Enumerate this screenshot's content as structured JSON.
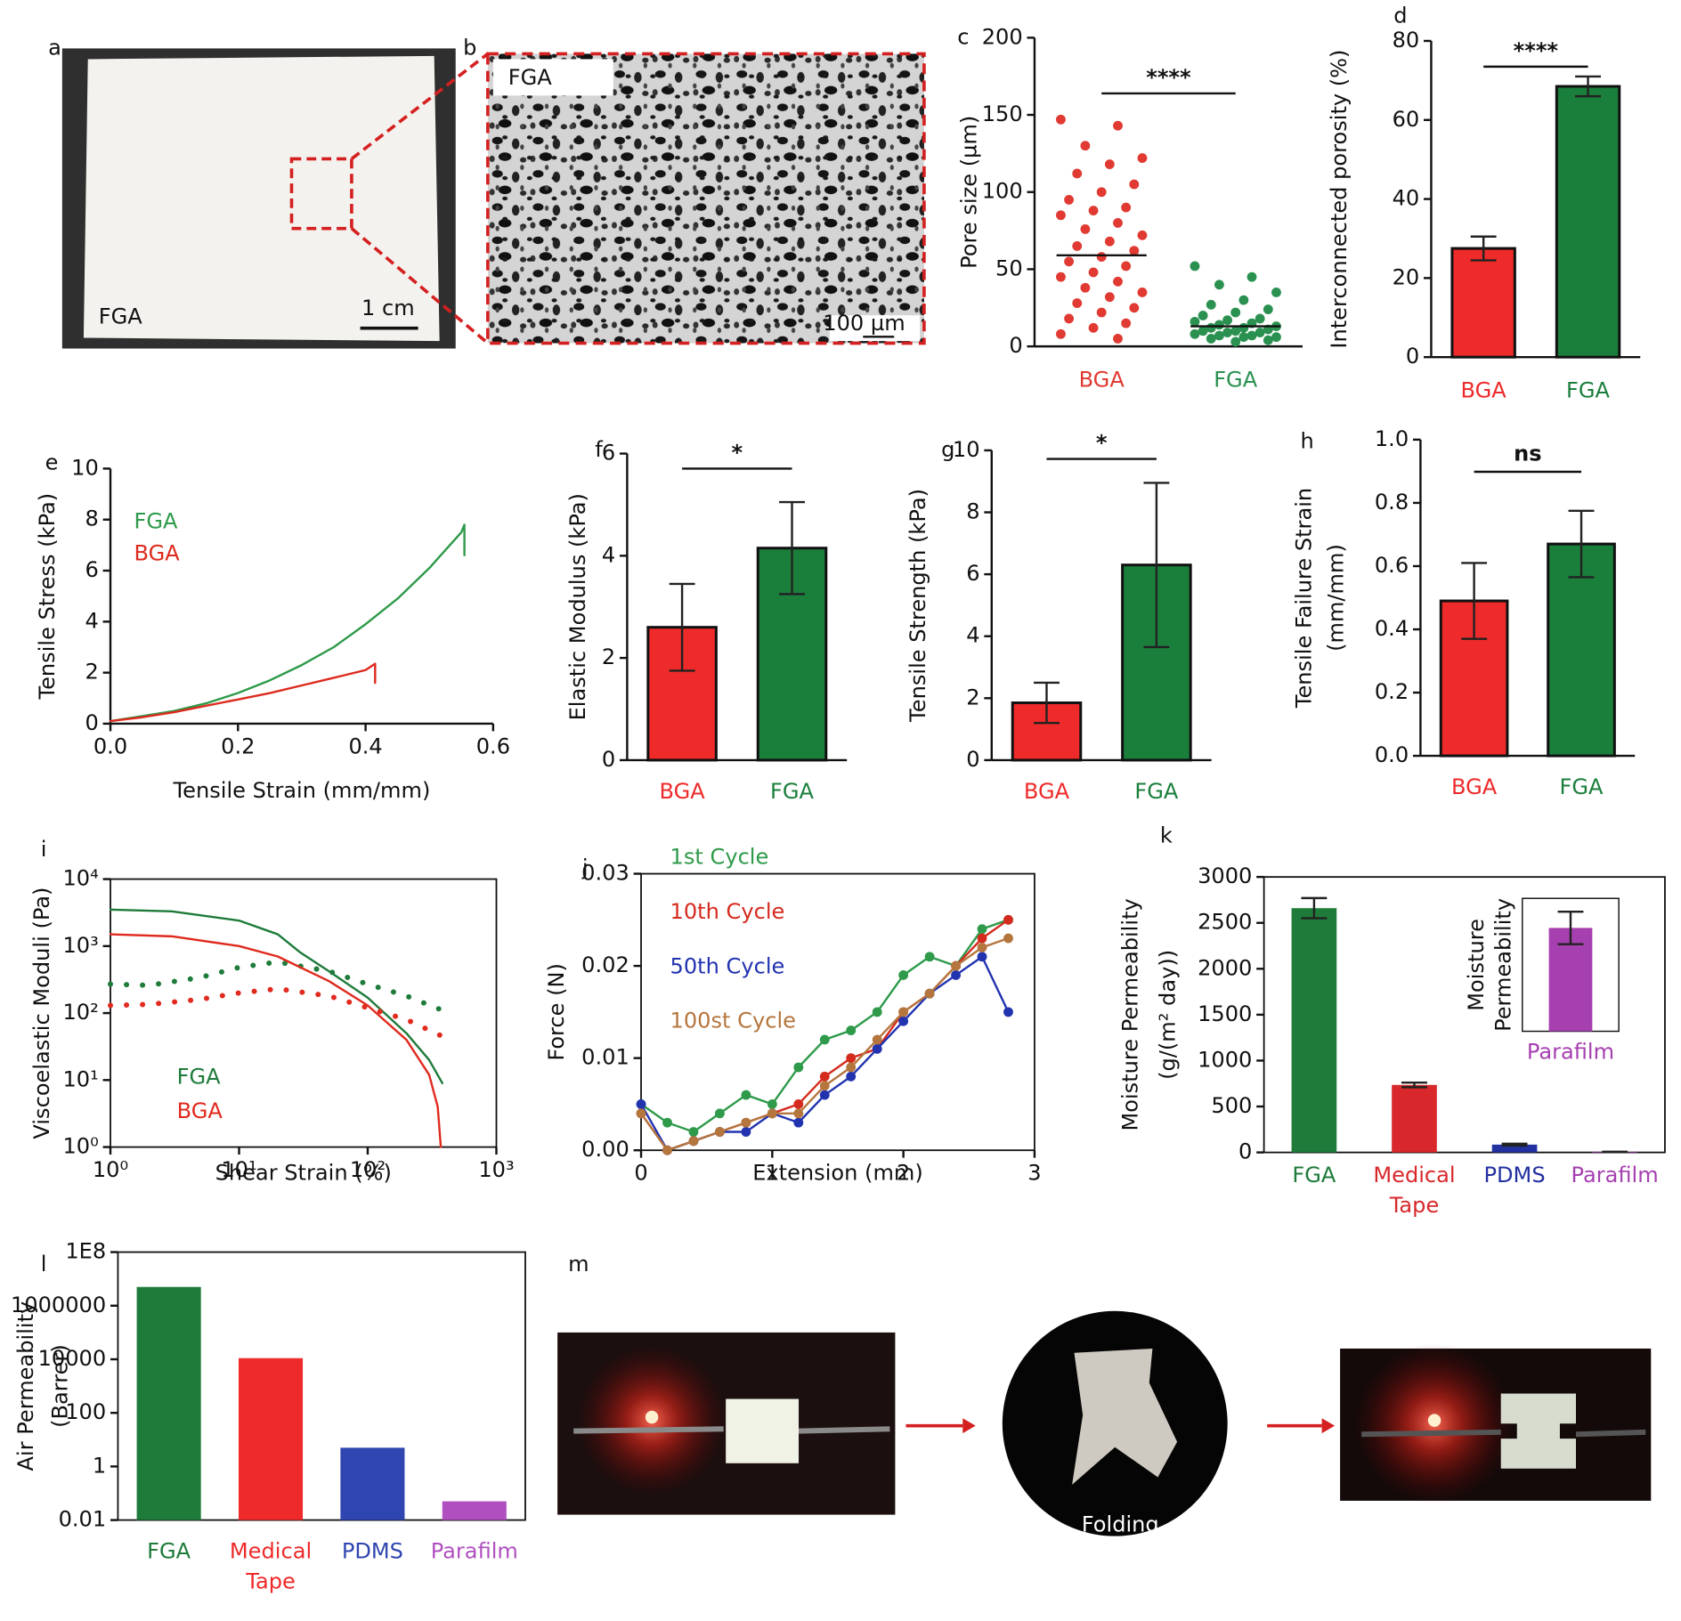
{
  "photos": {
    "a": {
      "label": "a",
      "sample": "FGA",
      "scale": "1 cm"
    },
    "b": {
      "label": "b",
      "sample": "FGA",
      "scale": "100 µm"
    },
    "m": {
      "label": "m",
      "caption": "Folding"
    }
  },
  "chart_data": [
    {
      "type": "strip",
      "label": "c",
      "ylabel": "Pore size (µm)",
      "ylim": [
        0,
        200
      ],
      "yticks": [
        0,
        50,
        100,
        150,
        200
      ],
      "series": [
        {
          "name": "BGA",
          "color": "#e03a32",
          "mean": 59,
          "values": [
            147,
            143,
            130,
            122,
            118,
            112,
            105,
            100,
            95,
            90,
            88,
            85,
            80,
            76,
            72,
            68,
            65,
            62,
            58,
            55,
            52,
            48,
            45,
            42,
            38,
            35,
            32,
            28,
            25,
            22,
            18,
            15,
            12,
            8,
            5
          ]
        },
        {
          "name": "FGA",
          "color": "#2a9150",
          "mean": 13,
          "values": [
            52,
            45,
            40,
            35,
            30,
            27,
            24,
            22,
            20,
            18,
            17,
            16,
            15,
            14,
            13,
            12,
            12,
            11,
            10,
            10,
            9,
            9,
            8,
            7,
            7,
            6,
            6,
            5,
            4,
            3
          ]
        }
      ],
      "significance": "****"
    },
    {
      "type": "bar",
      "label": "d",
      "ylabel": "Interconnected porosity (%)",
      "categories": [
        "BGA",
        "FGA"
      ],
      "values": [
        27.5,
        68.5
      ],
      "errors": [
        3,
        2.5
      ],
      "colors": [
        "#ee2a2a",
        "#1b7f3c"
      ],
      "bar_edge": "#111",
      "ylim": [
        0,
        80
      ],
      "yticks": [
        0,
        20,
        40,
        60,
        80
      ],
      "significance": "****"
    },
    {
      "type": "line",
      "label": "e",
      "xlabel": "Tensile Strain (mm/mm)",
      "ylabel": "Tensile Stress (kPa)",
      "xlim": [
        0,
        0.6
      ],
      "xticks": [
        {
          "value": 0,
          "label": "0.0"
        },
        0.2,
        0.4,
        0.6
      ],
      "ylim": [
        0,
        10
      ],
      "yticks": [
        0,
        2,
        4,
        6,
        8,
        10
      ],
      "legend": "upper left",
      "series": [
        {
          "name": "FGA",
          "color": "#2e9a4a",
          "x": [
            0,
            0.05,
            0.1,
            0.15,
            0.2,
            0.25,
            0.3,
            0.35,
            0.4,
            0.45,
            0.5,
            0.55,
            0.555,
            0.555
          ],
          "values": [
            0.1,
            0.3,
            0.5,
            0.8,
            1.2,
            1.7,
            2.3,
            3.0,
            3.9,
            4.9,
            6.1,
            7.5,
            7.8,
            6.6
          ]
        },
        {
          "name": "BGA",
          "color": "#dd2a1e",
          "x": [
            0,
            0.05,
            0.1,
            0.15,
            0.2,
            0.25,
            0.3,
            0.35,
            0.4,
            0.415,
            0.415
          ],
          "values": [
            0.1,
            0.25,
            0.45,
            0.7,
            0.95,
            1.2,
            1.5,
            1.8,
            2.1,
            2.35,
            1.6
          ]
        }
      ]
    },
    {
      "type": "bar",
      "label": "f",
      "ylabel": "Elastic Modulus (kPa)",
      "categories": [
        "BGA",
        "FGA"
      ],
      "values": [
        2.6,
        4.15
      ],
      "errors": [
        0.85,
        0.9
      ],
      "colors": [
        "#ee2a2a",
        "#1b7f3c"
      ],
      "bar_edge": "#111",
      "ylim": [
        0,
        6
      ],
      "yticks": [
        0,
        2,
        4,
        6
      ],
      "significance": "*"
    },
    {
      "type": "bar",
      "label": "g",
      "ylabel": "Tensile Strength (kPa)",
      "categories": [
        "BGA",
        "FGA"
      ],
      "values": [
        1.85,
        6.3
      ],
      "errors": [
        0.65,
        2.65
      ],
      "colors": [
        "#ee2a2a",
        "#1b7f3c"
      ],
      "bar_edge": "#111",
      "ylim": [
        0,
        10
      ],
      "yticks": [
        0,
        2,
        4,
        6,
        8,
        10
      ],
      "significance": "*"
    },
    {
      "type": "bar",
      "label": "h",
      "ylabel": [
        "Tensile Failure Strain",
        "(mm/mm)"
      ],
      "categories": [
        "BGA",
        "FGA"
      ],
      "values": [
        0.49,
        0.67
      ],
      "errors": [
        0.12,
        0.105
      ],
      "colors": [
        "#ee2a2a",
        "#1b7f3c"
      ],
      "bar_edge": "#111",
      "ylim": [
        0,
        1
      ],
      "yticks": [
        {
          "value": 0,
          "label": "0.0"
        },
        0.2,
        0.4,
        0.6,
        0.8,
        {
          "value": 1,
          "label": "1.0"
        }
      ],
      "significance": "ns"
    },
    {
      "type": "line",
      "label": "i",
      "xlabel": "Shear Strain (%)",
      "ylabel": "Viscoelastic  Moduli (Pa)",
      "box": true,
      "log_x": true,
      "log_y": true,
      "xlim": [
        1,
        1000
      ],
      "xticks": [
        {
          "value": 1,
          "label": "10⁰"
        },
        {
          "value": 10,
          "label": "10¹"
        },
        {
          "value": 100,
          "label": "10²"
        },
        {
          "value": 1000,
          "label": "10³"
        }
      ],
      "ylim": [
        1,
        10000
      ],
      "yticks": [
        {
          "value": 1,
          "label": "10⁰"
        },
        {
          "value": 10,
          "label": "10¹"
        },
        {
          "value": 100,
          "label": "10²"
        },
        {
          "value": 1000,
          "label": "10³"
        },
        {
          "value": 10000,
          "label": "10⁴"
        }
      ],
      "legend": "lower left",
      "series": [
        {
          "name": "FGA",
          "color": "#1e7b3a",
          "curves": [
            {
              "style": "solid",
              "x": [
                1,
                3,
                10,
                20,
                30,
                50,
                100,
                200,
                300,
                380
              ],
              "values": [
                3500,
                3300,
                2400,
                1500,
                800,
                420,
                170,
                50,
                20,
                9
              ]
            },
            {
              "style": "dotted",
              "x": [
                1,
                2,
                5,
                10,
                20,
                50,
                100,
                200,
                380
              ],
              "values": [
                270,
                260,
                340,
                480,
                580,
                420,
                270,
                180,
                110
              ]
            }
          ]
        },
        {
          "name": "BGA",
          "color": "#e02a1e",
          "curves": [
            {
              "style": "solid",
              "x": [
                1,
                3,
                10,
                20,
                50,
                100,
                200,
                300,
                350,
                370
              ],
              "values": [
                1500,
                1400,
                1000,
                700,
                300,
                130,
                40,
                12,
                4,
                1
              ]
            },
            {
              "style": "dotted",
              "x": [
                1,
                2,
                5,
                10,
                20,
                50,
                100,
                200,
                380
              ],
              "values": [
                130,
                135,
                160,
                200,
                230,
                180,
                120,
                80,
                45
              ]
            }
          ]
        }
      ]
    },
    {
      "type": "line",
      "label": "j",
      "xlabel": "Extension (mm)",
      "ylabel": "Force (N)",
      "box": true,
      "markers": true,
      "xlim": [
        0,
        3
      ],
      "xticks": [
        0,
        1,
        2,
        3
      ],
      "ylim": [
        0,
        0.03
      ],
      "yticks": [
        {
          "value": 0,
          "label": "0.00"
        },
        0.01,
        0.02,
        0.03
      ],
      "legend": "upper left",
      "x": [
        0,
        0.2,
        0.4,
        0.6,
        0.8,
        1.0,
        1.2,
        1.4,
        1.6,
        1.8,
        2.0,
        2.2,
        2.4,
        2.6,
        2.8
      ],
      "series": [
        {
          "name": "1st Cycle",
          "color": "#2e9a4a",
          "values": [
            0.005,
            0.003,
            0.002,
            0.004,
            0.006,
            0.005,
            0.009,
            0.012,
            0.013,
            0.015,
            0.019,
            0.021,
            0.02,
            0.024,
            0.025
          ]
        },
        {
          "name": "10th Cycle",
          "color": "#d42b1e",
          "values": [
            0.004,
            0,
            0.001,
            0.002,
            0.003,
            0.004,
            0.005,
            0.008,
            0.01,
            0.011,
            0.015,
            0.017,
            0.02,
            0.023,
            0.025
          ]
        },
        {
          "name": "50th Cycle",
          "color": "#2233b0",
          "values": [
            0.005,
            0,
            0.001,
            0.002,
            0.002,
            0.004,
            0.003,
            0.006,
            0.008,
            0.011,
            0.014,
            0.017,
            0.019,
            0.021,
            0.015
          ]
        },
        {
          "name": "100st Cycle",
          "color": "#b5763e",
          "values": [
            0.004,
            0,
            0.001,
            0.002,
            0.003,
            0.004,
            0.004,
            0.007,
            0.009,
            0.012,
            0.015,
            0.017,
            0.02,
            0.022,
            0.023
          ]
        }
      ]
    },
    {
      "type": "bar",
      "label": "k",
      "ylabel": [
        "Moisture Permeability",
        "(g/(m² day))"
      ],
      "box": true,
      "categories": [
        "FGA",
        [
          "Medical",
          "Tape"
        ],
        "PDMS",
        "Parafilm"
      ],
      "values": [
        2660,
        735,
        85,
        7
      ],
      "errors": [
        110,
        25,
        10,
        1.1
      ],
      "colors": [
        "#1e7b3a",
        "#d8282b",
        "#2330a0",
        "#a63fb0"
      ],
      "ylim": [
        0,
        3000
      ],
      "yticks": [
        0,
        500,
        1000,
        1500,
        2000,
        2500,
        3000
      ],
      "inset": {
        "ylabel": [
          "Moisture",
          "Permeability"
        ],
        "categories": [
          "Parafilm"
        ],
        "values": [
          7
        ],
        "errors": [
          1.1
        ],
        "colors": [
          "#a63fb0"
        ],
        "ylim": [
          0,
          9
        ]
      }
    },
    {
      "type": "bar",
      "label": "l",
      "ylabel": [
        "Air Permeability",
        "(Barrer)"
      ],
      "box": true,
      "log_y": true,
      "categories": [
        "FGA",
        [
          "Medical",
          "Tape"
        ],
        "PDMS",
        "Parafilm"
      ],
      "values": [
        5000000,
        11000,
        5,
        0.05
      ],
      "colors": [
        "#1e7b3a",
        "#ee2a2a",
        "#2f45b0",
        "#b050c0"
      ],
      "ylim": [
        0.01,
        100000000
      ],
      "yticks": [
        0.01,
        1,
        100,
        10000,
        1000000,
        {
          "value": 100000000,
          "label": "1E8"
        }
      ]
    }
  ]
}
